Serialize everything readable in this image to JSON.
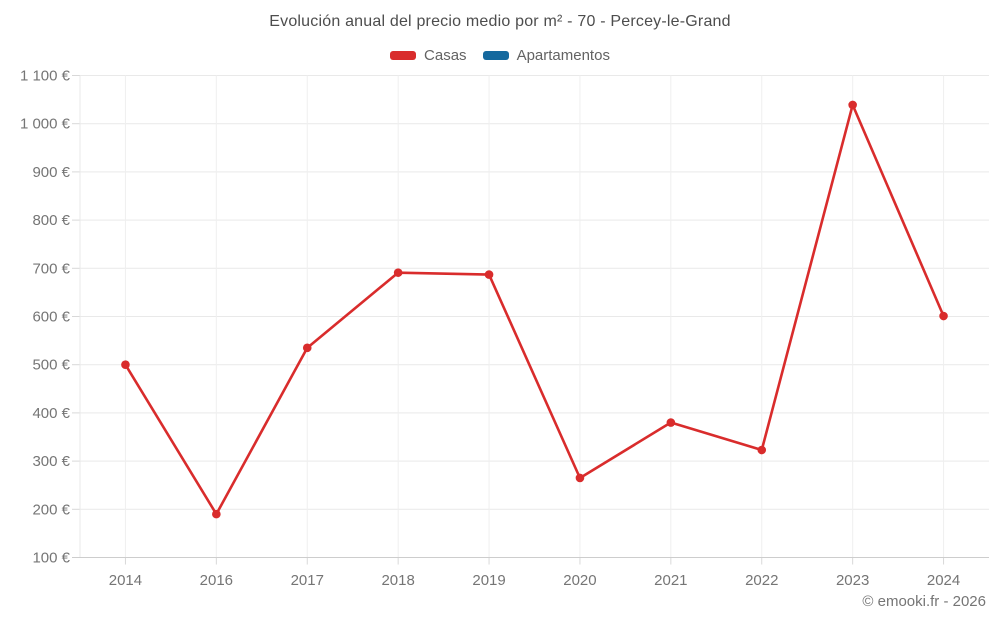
{
  "header": {
    "title": "Evolución anual del precio medio por m² - 70 - Percey-le-Grand"
  },
  "chart_data": {
    "type": "line",
    "title": "Evolución anual del precio medio por m² - 70 - Percey-le-Grand",
    "categories": [
      "2014",
      "2016",
      "2017",
      "2018",
      "2019",
      "2020",
      "2021",
      "2022",
      "2023",
      "2024"
    ],
    "series": [
      {
        "name": "Casas",
        "color": "#d92c2c",
        "values": [
          500,
          190,
          535,
          691,
          687,
          265,
          380,
          323,
          1039,
          601
        ]
      },
      {
        "name": "Apartamentos",
        "color": "#15699e",
        "values": []
      }
    ],
    "ylim": [
      100,
      1100
    ],
    "ytick_values": [
      100,
      200,
      300,
      400,
      500,
      600,
      700,
      800,
      900,
      1000,
      1100
    ],
    "ytick_labels": [
      "100 €",
      "200 €",
      "300 €",
      "400 €",
      "500 €",
      "600 €",
      "700 €",
      "800 €",
      "900 €",
      "1 000 €",
      "1 100 €"
    ],
    "grid": true,
    "legend_position": "top",
    "currency": "€"
  },
  "colors": {
    "grid_horizontal": "#e9e9e9",
    "grid_vertical": "#efefef",
    "axis_line": "#cdcdcd",
    "tick_mark": "#d8d8d8",
    "tick_text": "#757575",
    "title_text": "#4d4d4d"
  },
  "footer": {
    "credit": "© emooki.fr - 2026"
  }
}
